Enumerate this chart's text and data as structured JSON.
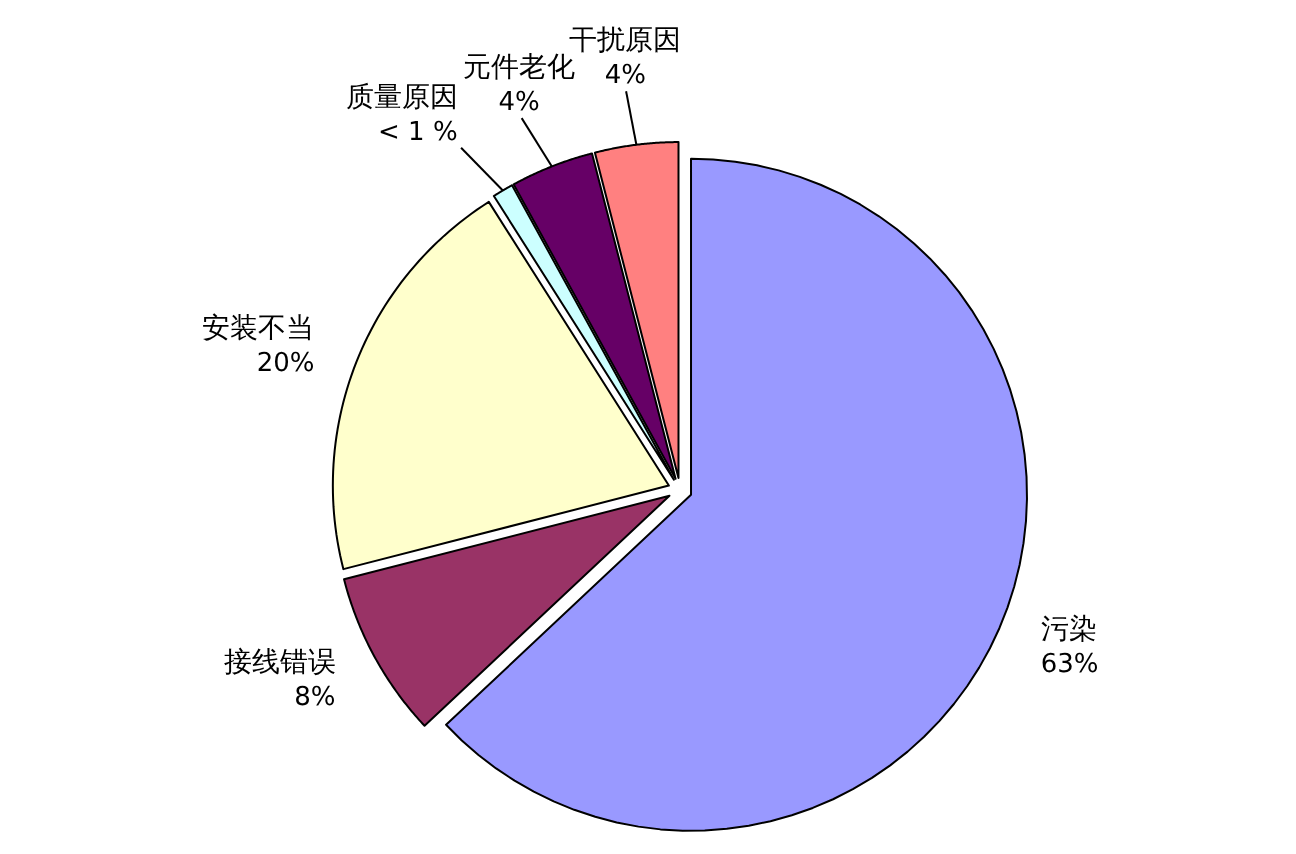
{
  "chart_data": {
    "type": "pie",
    "categories": [
      "污染",
      "接线错误",
      "安装不当",
      "质量原因",
      "元件老化",
      "干扰原因"
    ],
    "values": [
      63,
      8,
      20,
      1,
      4,
      4
    ],
    "value_labels": [
      "63%",
      "8%",
      "20%",
      "< 1 %",
      "4%",
      "4%"
    ],
    "colors": [
      "#9999ff",
      "#993366",
      "#ffffcc",
      "#ccffff",
      "#660066",
      "#ff8080"
    ],
    "legend": false
  }
}
